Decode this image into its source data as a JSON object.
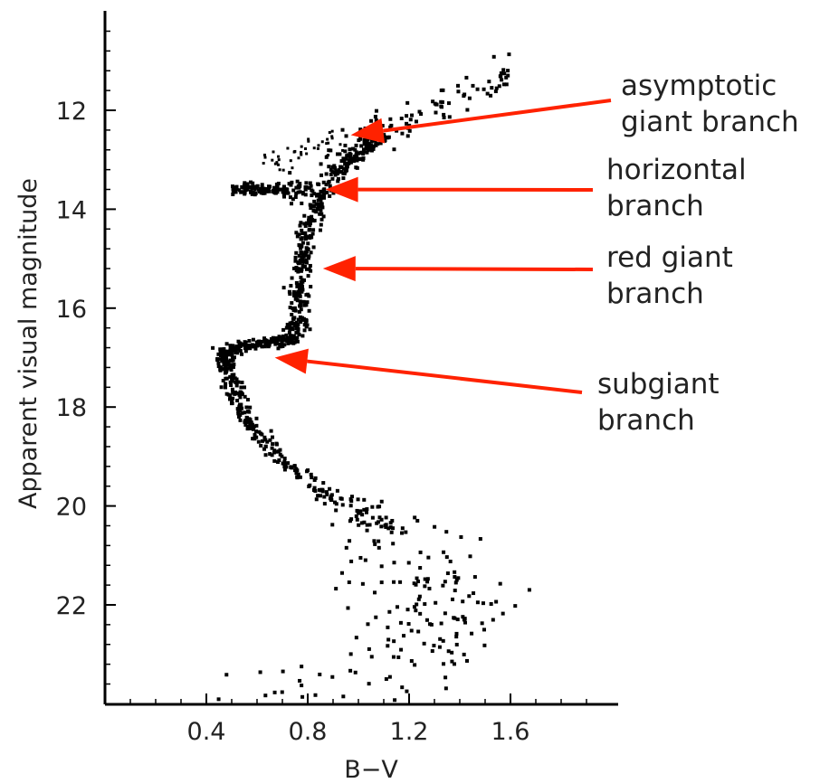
{
  "chart_data": {
    "type": "scatter",
    "title": "",
    "xlabel": "B−V",
    "ylabel": "Apparent visual magnitude",
    "xlim": [
      0.0,
      2.0
    ],
    "ylim": [
      24.0,
      10.2
    ],
    "y_inverted": true,
    "x_ticks": [
      "0.4",
      "0.8",
      "1.2",
      "1.6"
    ],
    "y_ticks": [
      "12",
      "14",
      "16",
      "18",
      "20",
      "22"
    ],
    "grid": false,
    "legend": "none",
    "point_color": "#000000",
    "arrow_color": "#ff2200",
    "sequence_ridge": [
      {
        "x": 0.52,
        "y": 24.0
      },
      {
        "x": 1.4,
        "y": 22.8
      },
      {
        "x": 1.3,
        "y": 21.6
      },
      {
        "x": 1.1,
        "y": 20.5
      },
      {
        "x": 0.9,
        "y": 19.8
      },
      {
        "x": 0.7,
        "y": 19.1
      },
      {
        "x": 0.58,
        "y": 18.4
      },
      {
        "x": 0.52,
        "y": 17.8
      },
      {
        "x": 0.48,
        "y": 17.2
      },
      {
        "x": 0.47,
        "y": 16.9
      },
      {
        "x": 0.55,
        "y": 16.75
      },
      {
        "x": 0.66,
        "y": 16.7
      },
      {
        "x": 0.75,
        "y": 16.6
      },
      {
        "x": 0.77,
        "y": 16.2
      },
      {
        "x": 0.77,
        "y": 15.6
      },
      {
        "x": 0.78,
        "y": 15.0
      },
      {
        "x": 0.8,
        "y": 14.4
      },
      {
        "x": 0.84,
        "y": 13.8
      },
      {
        "x": 0.92,
        "y": 13.2
      },
      {
        "x": 1.02,
        "y": 12.8
      },
      {
        "x": 1.1,
        "y": 12.5
      }
    ],
    "horizontal_branch": {
      "x_range": [
        0.5,
        0.82
      ],
      "y": 13.6
    },
    "agb_region": {
      "x_range": [
        0.85,
        1.6
      ],
      "y_range": [
        11.2,
        13.1
      ]
    },
    "annotations": [
      {
        "text_lines": [
          "asymptotic",
          "giant branch"
        ],
        "arrow_tip": {
          "x": 0.97,
          "y": 12.5
        }
      },
      {
        "text_lines": [
          "horizontal",
          "branch"
        ],
        "arrow_tip": {
          "x": 0.87,
          "y": 13.6
        }
      },
      {
        "text_lines": [
          "red giant",
          "branch"
        ],
        "arrow_tip": {
          "x": 0.86,
          "y": 15.2
        }
      },
      {
        "text_lines": [
          "subgiant",
          "branch"
        ],
        "arrow_tip": {
          "x": 0.67,
          "y": 17.0
        }
      }
    ]
  }
}
